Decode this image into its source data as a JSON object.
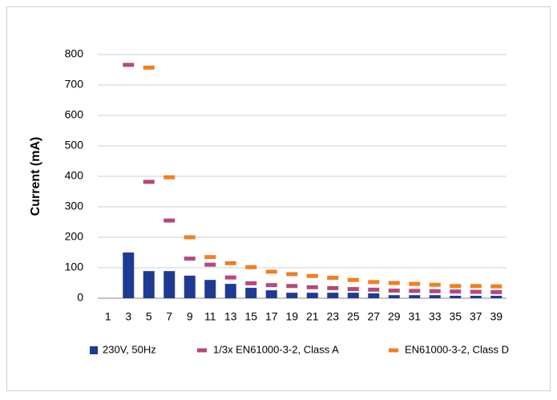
{
  "chart_data": {
    "type": "bar",
    "y_label": "Current (mA)",
    "categories": [
      "1",
      "3",
      "5",
      "7",
      "9",
      "11",
      "13",
      "15",
      "17",
      "19",
      "21",
      "23",
      "25",
      "27",
      "29",
      "31",
      "33",
      "35",
      "37",
      "39"
    ],
    "series": [
      {
        "name": "230V, 50Hz",
        "color": "#1f3a93",
        "mark": "bar",
        "values": [
          0,
          150,
          89,
          89,
          74,
          60,
          47,
          34,
          26,
          18,
          18,
          18,
          18,
          16,
          10,
          10,
          10,
          8,
          8,
          8
        ]
      },
      {
        "name": "1/3x EN61000-3-2, Class A",
        "color": "#b5487f",
        "mark": "dash",
        "values": [
          null,
          766,
          382,
          255,
          130,
          110,
          68,
          49,
          43,
          40,
          36,
          33,
          30,
          28,
          25,
          24,
          23,
          22,
          21,
          20
        ]
      },
      {
        "name": "EN61000-3-2, Class D",
        "color": "#f07f22",
        "mark": "dash",
        "values": [
          null,
          null,
          757,
          397,
          200,
          135,
          115,
          102,
          87,
          79,
          73,
          67,
          60,
          53,
          50,
          47,
          44,
          40,
          40,
          39
        ]
      }
    ],
    "ylim": [
      0,
      800
    ],
    "yticks": [
      0,
      100,
      200,
      300,
      400,
      500,
      600,
      700,
      800
    ],
    "grid": true
  }
}
